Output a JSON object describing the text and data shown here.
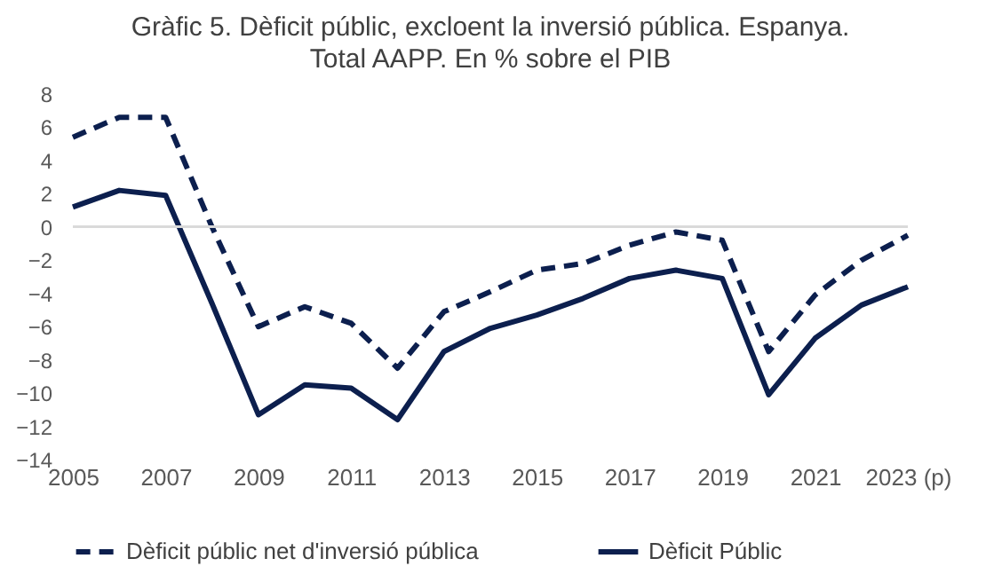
{
  "chart_data": {
    "type": "line",
    "title": "Gràfic 5. Dèficit públic, excloent la inversió pública. Espanya.",
    "subtitle": "Total AAPP. En % sobre el PIB",
    "categories": [
      "2005",
      null,
      "2007",
      null,
      "2009",
      null,
      "2011",
      null,
      "2013",
      null,
      "2015",
      null,
      "2017",
      null,
      "2019",
      null,
      "2021",
      null,
      "2023 (p)"
    ],
    "series": [
      {
        "name": "Dèficit públic net d'inversió pública",
        "color": "#0c1f4e",
        "line_style": "dashed",
        "values": [
          5.4,
          6.6,
          6.6,
          0.0,
          -6.0,
          -4.8,
          -5.8,
          -8.5,
          -5.1,
          -3.9,
          -2.6,
          -2.2,
          -1.1,
          -0.3,
          -0.8,
          -7.5,
          -4.1,
          -2.0,
          -0.5
        ]
      },
      {
        "name": "Dèficit Públic",
        "color": "#0c1f4e",
        "line_style": "solid",
        "values": [
          1.2,
          2.2,
          1.9,
          -4.6,
          -11.3,
          -9.5,
          -9.7,
          -11.6,
          -7.5,
          -6.1,
          -5.3,
          -4.3,
          -3.1,
          -2.6,
          -3.1,
          -10.1,
          -6.7,
          -4.7,
          -3.6
        ]
      }
    ],
    "ylim": [
      -14,
      8
    ],
    "yticks": [
      -14,
      -12,
      -10,
      -8,
      -6,
      -4,
      -2,
      0,
      2,
      4,
      6,
      8
    ],
    "ref_lines": [
      {
        "axis": "y",
        "value": 0,
        "color": "#d9d9d9"
      }
    ],
    "grid": false,
    "legend": "bottom"
  }
}
